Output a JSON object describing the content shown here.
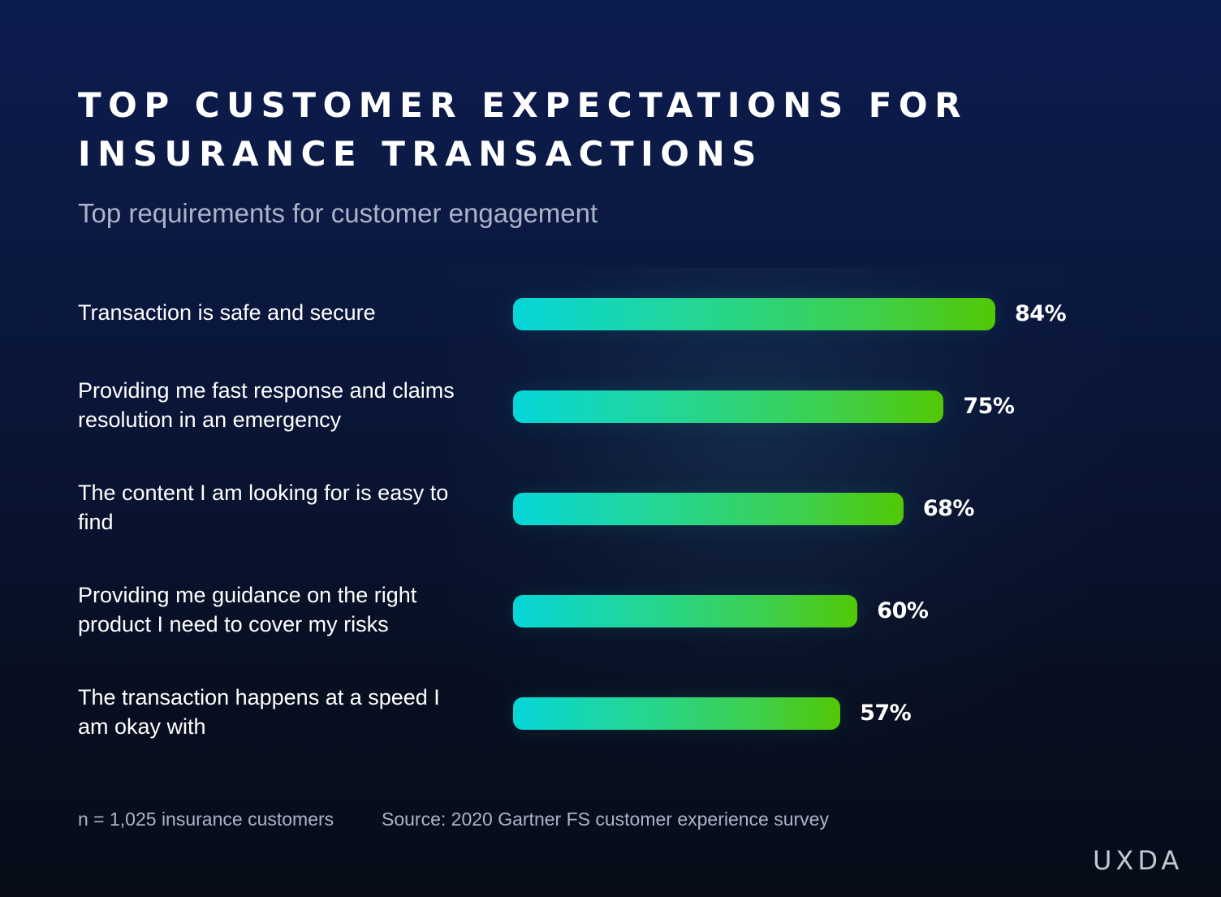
{
  "header": {
    "title": "TOP CUSTOMER EXPECTATIONS FOR INSURANCE TRANSACTIONS",
    "subtitle": "Top requirements for customer engagement"
  },
  "chart_data": {
    "type": "bar",
    "orientation": "horizontal",
    "title": "TOP CUSTOMER EXPECTATIONS FOR INSURANCE TRANSACTIONS",
    "subtitle": "Top requirements for customer engagement",
    "categories": [
      "Transaction is safe and secure",
      "Providing me fast response and claims resolution in an emergency",
      "The content I am looking for is easy to find",
      "Providing me guidance on the right product I need to cover my risks",
      "The transaction happens at a speed I am okay with"
    ],
    "values": [
      84,
      75,
      68,
      60,
      57
    ],
    "value_labels": [
      "84%",
      "75%",
      "68%",
      "60%",
      "57%"
    ],
    "unit": "%",
    "xlim": [
      0,
      100
    ],
    "xlabel": "",
    "ylabel": "",
    "grid": false,
    "legend": "none"
  },
  "footer": {
    "sample": "n = 1,025 insurance customers",
    "source": "Source: 2020 Gartner FS customer experience survey"
  },
  "brand": {
    "logo_text": "UXDA"
  },
  "colors": {
    "bar_start": "#06d6d9",
    "bar_end": "#52c805",
    "text_primary": "#ffffff",
    "text_muted": "#aab4c8"
  }
}
